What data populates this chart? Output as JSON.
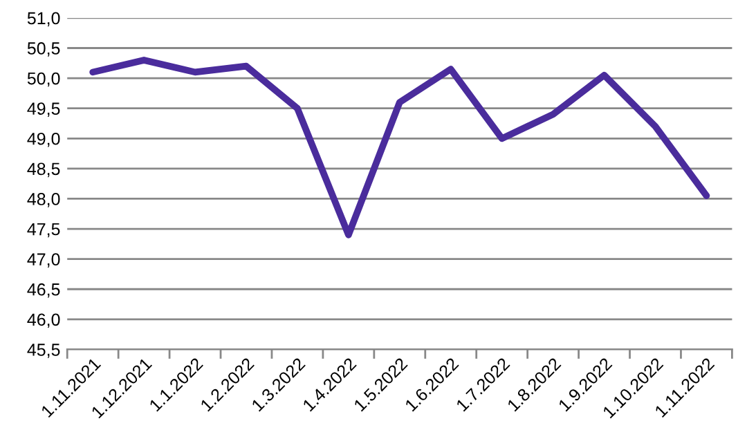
{
  "chart_data": {
    "type": "line",
    "categories": [
      "1.11.2021",
      "1.12.2021",
      "1.1.2022",
      "1.2.2022",
      "1.3.2022",
      "1.4.2022",
      "1.5.2022",
      "1.6.2022",
      "1.7.2022",
      "1.8.2022",
      "1.9.2022",
      "1.10.2022",
      "1.11.2022"
    ],
    "series": [
      {
        "color": "#4a2c9c",
        "values": [
          50.1,
          50.3,
          50.1,
          50.2,
          49.5,
          47.4,
          49.6,
          50.15,
          49.0,
          49.4,
          50.05,
          49.2,
          48.05
        ]
      }
    ],
    "ylim": [
      45.5,
      51.0
    ],
    "yticks": [
      {
        "value": 45.5,
        "label": "45,5"
      },
      {
        "value": 46.0,
        "label": "46,0"
      },
      {
        "value": 46.5,
        "label": "46,5"
      },
      {
        "value": 47.0,
        "label": "47,0"
      },
      {
        "value": 47.5,
        "label": "47,5"
      },
      {
        "value": 48.0,
        "label": "48,0"
      },
      {
        "value": 48.5,
        "label": "48,5"
      },
      {
        "value": 49.0,
        "label": "49,0"
      },
      {
        "value": 49.5,
        "label": "49,5"
      },
      {
        "value": 50.0,
        "label": "50,0"
      },
      {
        "value": 50.5,
        "label": "50,5"
      },
      {
        "value": 51.0,
        "label": "51,0"
      }
    ],
    "grid": "y",
    "marker": "none",
    "line_style": "solid"
  }
}
